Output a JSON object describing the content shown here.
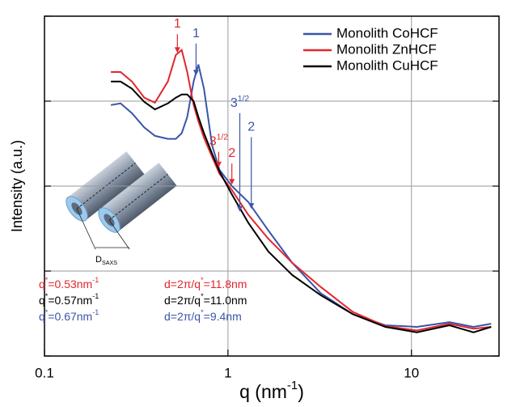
{
  "chart_data": {
    "type": "line",
    "x_label": [
      {
        "t": "q (nm"
      },
      {
        "t": "-1",
        "sup": true
      },
      {
        "t": ")"
      }
    ],
    "y_label": "Intensity (a.u.)",
    "xscale": "log",
    "yscale": "log",
    "grid": true,
    "legend": "upper right",
    "xlim": [
      0.1,
      30
    ],
    "ylim": [
      0.001,
      10
    ],
    "xticks": [
      0.1,
      1,
      10
    ],
    "yticks": [
      0.001,
      0.01,
      0.1,
      1,
      10
    ],
    "x": [
      0.23,
      0.26,
      0.3,
      0.35,
      0.4,
      0.47,
      0.52,
      0.56,
      0.6,
      0.65,
      0.69,
      0.74,
      0.82,
      0.9,
      1.05,
      1.29,
      1.66,
      2.24,
      3.2,
      4.8,
      7.2,
      10.7,
      16.1,
      21.8,
      27.2
    ],
    "series": [
      {
        "name": "Monolith CoHCF",
        "color": "#3a55a8",
        "values": [
          0.9,
          0.94,
          0.72,
          0.49,
          0.39,
          0.36,
          0.36,
          0.42,
          0.65,
          1.7,
          2.7,
          1.4,
          0.3,
          0.155,
          0.1,
          0.065,
          0.03,
          0.0125,
          0.0055,
          0.0031,
          0.0023,
          0.0022,
          0.0025,
          0.0022,
          0.0024
        ]
      },
      {
        "name": "Monolith ZnHCF",
        "color": "#e3262d",
        "values": [
          2.2,
          2.2,
          1.7,
          1.1,
          0.96,
          1.7,
          3.5,
          4.0,
          2.2,
          0.9,
          0.58,
          0.37,
          0.22,
          0.139,
          0.09,
          0.046,
          0.024,
          0.0125,
          0.0065,
          0.0033,
          0.00225,
          0.002,
          0.0024,
          0.0021,
          0.0022
        ]
      },
      {
        "name": "Monolith CuHCF",
        "color": "#000000",
        "values": [
          1.7,
          1.7,
          1.4,
          0.98,
          0.8,
          0.94,
          1.1,
          1.2,
          1.2,
          1.0,
          0.65,
          0.42,
          0.24,
          0.148,
          0.08,
          0.037,
          0.017,
          0.009,
          0.0052,
          0.0031,
          0.0022,
          0.0019,
          0.0023,
          0.0019,
          0.0022
        ]
      }
    ],
    "annotations": [
      {
        "parts": [
          {
            "t": "1"
          }
        ],
        "color": "#e3262d",
        "x": 0.53,
        "y": 3.7,
        "label_y": 8.0
      },
      {
        "parts": [
          {
            "t": "1"
          }
        ],
        "color": "#3a55a8",
        "x": 0.67,
        "y": 2.0,
        "label_y": 6.2
      },
      {
        "parts": [
          {
            "t": "3"
          },
          {
            "t": "1/2",
            "sup": true
          }
        ],
        "color": "#e3262d",
        "x": 0.89,
        "y": 0.166,
        "label_y": 0.33
      },
      {
        "parts": [
          {
            "t": "2"
          }
        ],
        "color": "#e3262d",
        "x": 1.05,
        "y": 0.104,
        "label_y": 0.24
      },
      {
        "parts": [
          {
            "t": "3"
          },
          {
            "t": "1/2",
            "sup": true
          }
        ],
        "color": "#3a55a8",
        "x": 1.16,
        "y": 0.05,
        "label_y": 0.94
      },
      {
        "parts": [
          {
            "t": "2"
          }
        ],
        "color": "#3a55a8",
        "x": 1.34,
        "y": 0.054,
        "label_y": 0.49
      }
    ],
    "notes": [
      {
        "color": "#e3262d",
        "q": [
          {
            "t": "q"
          },
          {
            "t": "*",
            "sup": true
          },
          {
            "t": "=0.53nm"
          },
          {
            "t": "-1",
            "sup": true
          }
        ],
        "d": [
          {
            "t": "d=2π/q"
          },
          {
            "t": "*",
            "sup": true
          },
          {
            "t": "=11.8nm"
          }
        ]
      },
      {
        "color": "#000000",
        "q": [
          {
            "t": "q"
          },
          {
            "t": "*",
            "sup": true
          },
          {
            "t": "=0.57nm"
          },
          {
            "t": "-1",
            "sup": true
          }
        ],
        "d": [
          {
            "t": "d=2π/q"
          },
          {
            "t": "*",
            "sup": true
          },
          {
            "t": "=11.0nm"
          }
        ]
      },
      {
        "color": "#3a55a8",
        "q": [
          {
            "t": "q"
          },
          {
            "t": "*",
            "sup": true
          },
          {
            "t": "=0.67nm"
          },
          {
            "t": "-1",
            "sup": true
          }
        ],
        "d": [
          {
            "t": "d=2π/q"
          },
          {
            "t": "*",
            "sup": true
          },
          {
            "t": "=9.4nm"
          }
        ]
      }
    ],
    "diagram_label": [
      {
        "t": "D"
      },
      {
        "t": "SAXS",
        "sub": true
      }
    ]
  }
}
